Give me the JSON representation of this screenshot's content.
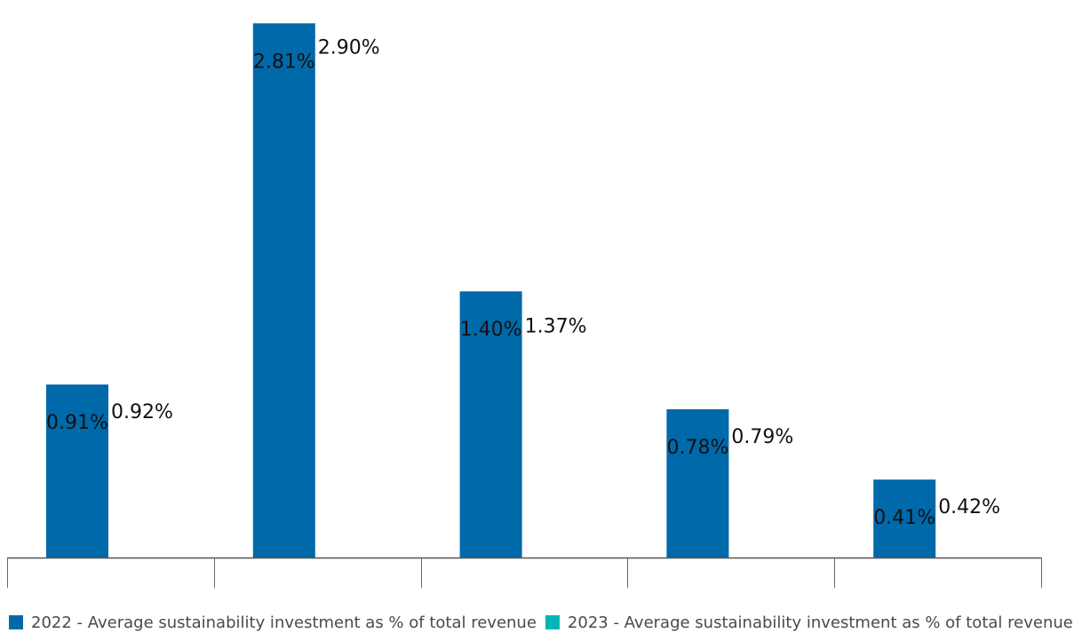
{
  "chart_data": {
    "type": "bar",
    "categories": [
      "",
      "",
      "",
      "",
      ""
    ],
    "ylim": [
      0,
      2.9
    ],
    "grid": false,
    "legend_position": "bottom",
    "series": [
      {
        "name": "2022 - Average sustainability investment as % of total revenue",
        "color": "#0069aa",
        "values": [
          0.91,
          2.81,
          1.4,
          0.78,
          0.41
        ],
        "labels": [
          "0.91%",
          "2.81%",
          "1.40%",
          "0.78%",
          "0.41%"
        ]
      },
      {
        "name": "2023 - Average sustainability investment as % of total revenue",
        "color": "#00b6b6",
        "values": [
          0.92,
          2.9,
          1.37,
          0.79,
          0.42
        ],
        "labels": [
          "0.92%",
          "2.90%",
          "1.37%",
          "0.79%",
          "0.42%"
        ]
      }
    ]
  }
}
